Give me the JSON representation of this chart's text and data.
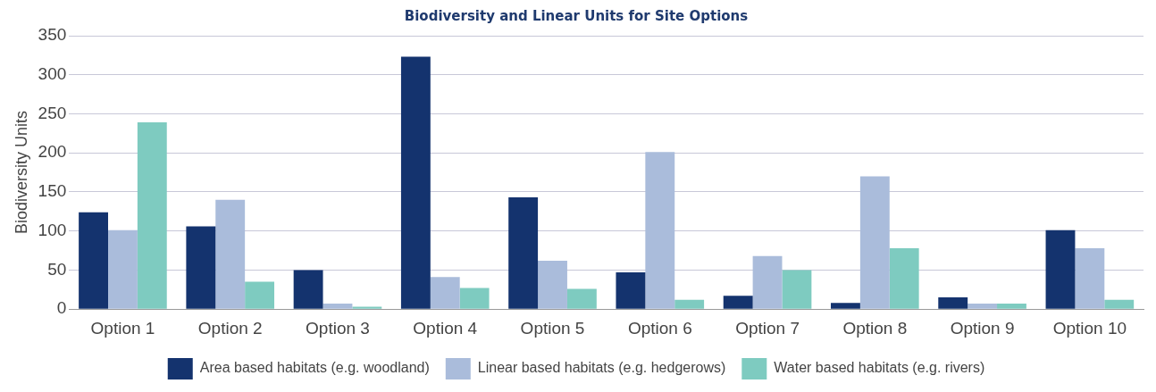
{
  "chart_data": {
    "type": "bar",
    "title": "Biodiversity and Linear Units for Site Options",
    "ylabel": "Biodiversity Units",
    "categories": [
      "Option 1",
      "Option 2",
      "Option 3",
      "Option 4",
      "Option 5",
      "Option 6",
      "Option 7",
      "Option 8",
      "Option 9",
      "Option 10"
    ],
    "series": [
      {
        "name": "Area based habitats (e.g. woodland)",
        "color": "#14336e",
        "values": [
          124,
          106,
          50,
          323,
          143,
          47,
          17,
          8,
          15,
          101
        ]
      },
      {
        "name": "Linear based habitats (e.g. hedgerows)",
        "color": "#aabcdb",
        "values": [
          101,
          140,
          7,
          41,
          62,
          201,
          68,
          170,
          7,
          78
        ]
      },
      {
        "name": "Water based habitats (e.g. rivers)",
        "color": "#7ecbc0",
        "values": [
          239,
          35,
          3,
          27,
          26,
          12,
          50,
          78,
          7,
          12
        ]
      }
    ],
    "ylim": [
      0,
      350
    ],
    "yticks": [
      0,
      50,
      100,
      150,
      200,
      250,
      300,
      350
    ],
    "grid": "y",
    "legend": "bottom"
  }
}
